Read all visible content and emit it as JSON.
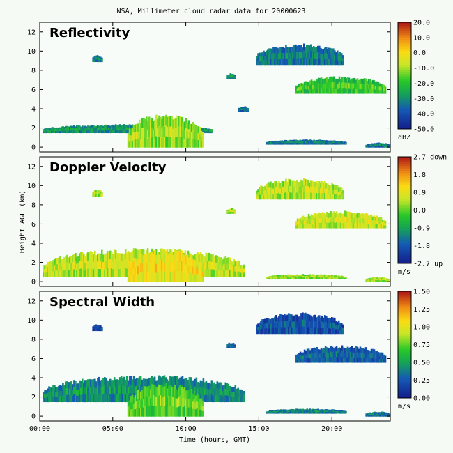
{
  "chart_data": [
    {
      "type": "heatmap",
      "figure_title": "NSA, Millimeter cloud radar data for 20000623",
      "panel_title": "Reflectivity",
      "xlabel": "Time (hours, GMT)",
      "ylabel": "Height AGL (km)",
      "xlim": [
        0,
        24
      ],
      "ylim": [
        -0.5,
        13
      ],
      "x_ticks": [
        "00:00",
        "05:00",
        "10:00",
        "15:00",
        "20:00"
      ],
      "y_ticks": [
        "0",
        "2",
        "4",
        "6",
        "8",
        "10",
        "12"
      ],
      "colorbar": {
        "ticks": [
          "20.0",
          "10.0",
          "0.0",
          "-10.0",
          "-20.0",
          "-30.0",
          "-40.0",
          "-50.0"
        ],
        "unit": "dBZ",
        "range": [
          -50,
          20
        ]
      },
      "cloud_layers": [
        {
          "t_start": 3.6,
          "t_end": 4.3,
          "h_low": 8.9,
          "h_high": 9.6,
          "level": -35
        },
        {
          "t_start": 12.8,
          "t_end": 13.4,
          "h_low": 7.1,
          "h_high": 7.7,
          "level": -30
        },
        {
          "t_start": 13.6,
          "t_end": 14.3,
          "h_low": 3.7,
          "h_high": 4.3,
          "level": -35
        },
        {
          "t_start": 14.8,
          "t_end": 20.8,
          "h_low": 8.6,
          "h_high": 10.8,
          "level": -35
        },
        {
          "t_start": 17.5,
          "t_end": 23.7,
          "h_low": 5.6,
          "h_high": 7.4,
          "level": -20
        },
        {
          "t_start": 0.2,
          "t_end": 11.8,
          "h_low": 1.5,
          "h_high": 2.4,
          "level": -30
        },
        {
          "t_start": 6.0,
          "t_end": 11.2,
          "h_low": 0.0,
          "h_high": 3.5,
          "level": -12
        },
        {
          "t_start": 15.5,
          "t_end": 21.0,
          "h_low": 0.3,
          "h_high": 0.8,
          "level": -35
        },
        {
          "t_start": 22.3,
          "t_end": 24.0,
          "h_low": 0.0,
          "h_high": 0.5,
          "level": -35
        }
      ]
    },
    {
      "type": "heatmap",
      "panel_title": "Doppler Velocity",
      "xlabel": "Time (hours, GMT)",
      "ylabel": "Height AGL (km)",
      "xlim": [
        0,
        24
      ],
      "ylim": [
        -0.5,
        13
      ],
      "y_ticks": [
        "0",
        "2",
        "4",
        "6",
        "8",
        "10",
        "12"
      ],
      "colorbar": {
        "ticks": [
          "2.7 down",
          "1.8",
          "0.9",
          "0.0",
          "-0.9",
          "-1.8",
          "-2.7 up"
        ],
        "unit": "m/s",
        "range": [
          -2.7,
          2.7
        ]
      },
      "cloud_layers": [
        {
          "t_start": 3.6,
          "t_end": 4.3,
          "h_low": 8.9,
          "h_high": 9.6,
          "level": 0.3
        },
        {
          "t_start": 12.8,
          "t_end": 13.4,
          "h_low": 7.1,
          "h_high": 7.7,
          "level": 0.3
        },
        {
          "t_start": 14.8,
          "t_end": 20.8,
          "h_low": 8.6,
          "h_high": 10.8,
          "level": 0.4
        },
        {
          "t_start": 17.5,
          "t_end": 23.7,
          "h_low": 5.6,
          "h_high": 7.4,
          "level": 0.5
        },
        {
          "t_start": 0.2,
          "t_end": 14.0,
          "h_low": 0.5,
          "h_high": 3.5,
          "level": 0.4
        },
        {
          "t_start": 6.0,
          "t_end": 11.2,
          "h_low": 0.0,
          "h_high": 3.5,
          "level": 0.9
        },
        {
          "t_start": 15.5,
          "t_end": 21.0,
          "h_low": 0.3,
          "h_high": 0.8,
          "level": 0.2
        },
        {
          "t_start": 22.3,
          "t_end": 24.0,
          "h_low": 0.0,
          "h_high": 0.5,
          "level": 0.2
        }
      ]
    },
    {
      "type": "heatmap",
      "panel_title": "Spectral Width",
      "xlabel": "Time (hours, GMT)",
      "ylabel": "Height AGL (km)",
      "xlim": [
        0,
        24
      ],
      "ylim": [
        -0.5,
        13
      ],
      "x_ticks": [
        "00:00",
        "05:00",
        "10:00",
        "15:00",
        "20:00"
      ],
      "y_ticks": [
        "0",
        "2",
        "4",
        "6",
        "8",
        "10",
        "12"
      ],
      "colorbar": {
        "ticks": [
          "1.50",
          "1.25",
          "1.00",
          "0.75",
          "0.50",
          "0.25",
          "0.00"
        ],
        "unit": "m/s",
        "range": [
          0,
          1.5
        ]
      },
      "cloud_layers": [
        {
          "t_start": 3.6,
          "t_end": 4.3,
          "h_low": 8.9,
          "h_high": 9.6,
          "level": 0.15
        },
        {
          "t_start": 12.8,
          "t_end": 13.4,
          "h_low": 7.1,
          "h_high": 7.7,
          "level": 0.25
        },
        {
          "t_start": 14.8,
          "t_end": 20.8,
          "h_low": 8.6,
          "h_high": 10.8,
          "level": 0.2
        },
        {
          "t_start": 17.5,
          "t_end": 23.7,
          "h_low": 5.6,
          "h_high": 7.4,
          "level": 0.25
        },
        {
          "t_start": 0.2,
          "t_end": 14.0,
          "h_low": 1.5,
          "h_high": 4.3,
          "level": 0.4
        },
        {
          "t_start": 6.0,
          "t_end": 11.2,
          "h_low": 0.0,
          "h_high": 3.5,
          "level": 0.7
        },
        {
          "t_start": 15.5,
          "t_end": 21.0,
          "h_low": 0.3,
          "h_high": 0.8,
          "level": 0.35
        },
        {
          "t_start": 22.3,
          "t_end": 24.0,
          "h_low": 0.0,
          "h_high": 0.5,
          "level": 0.3
        }
      ]
    }
  ]
}
